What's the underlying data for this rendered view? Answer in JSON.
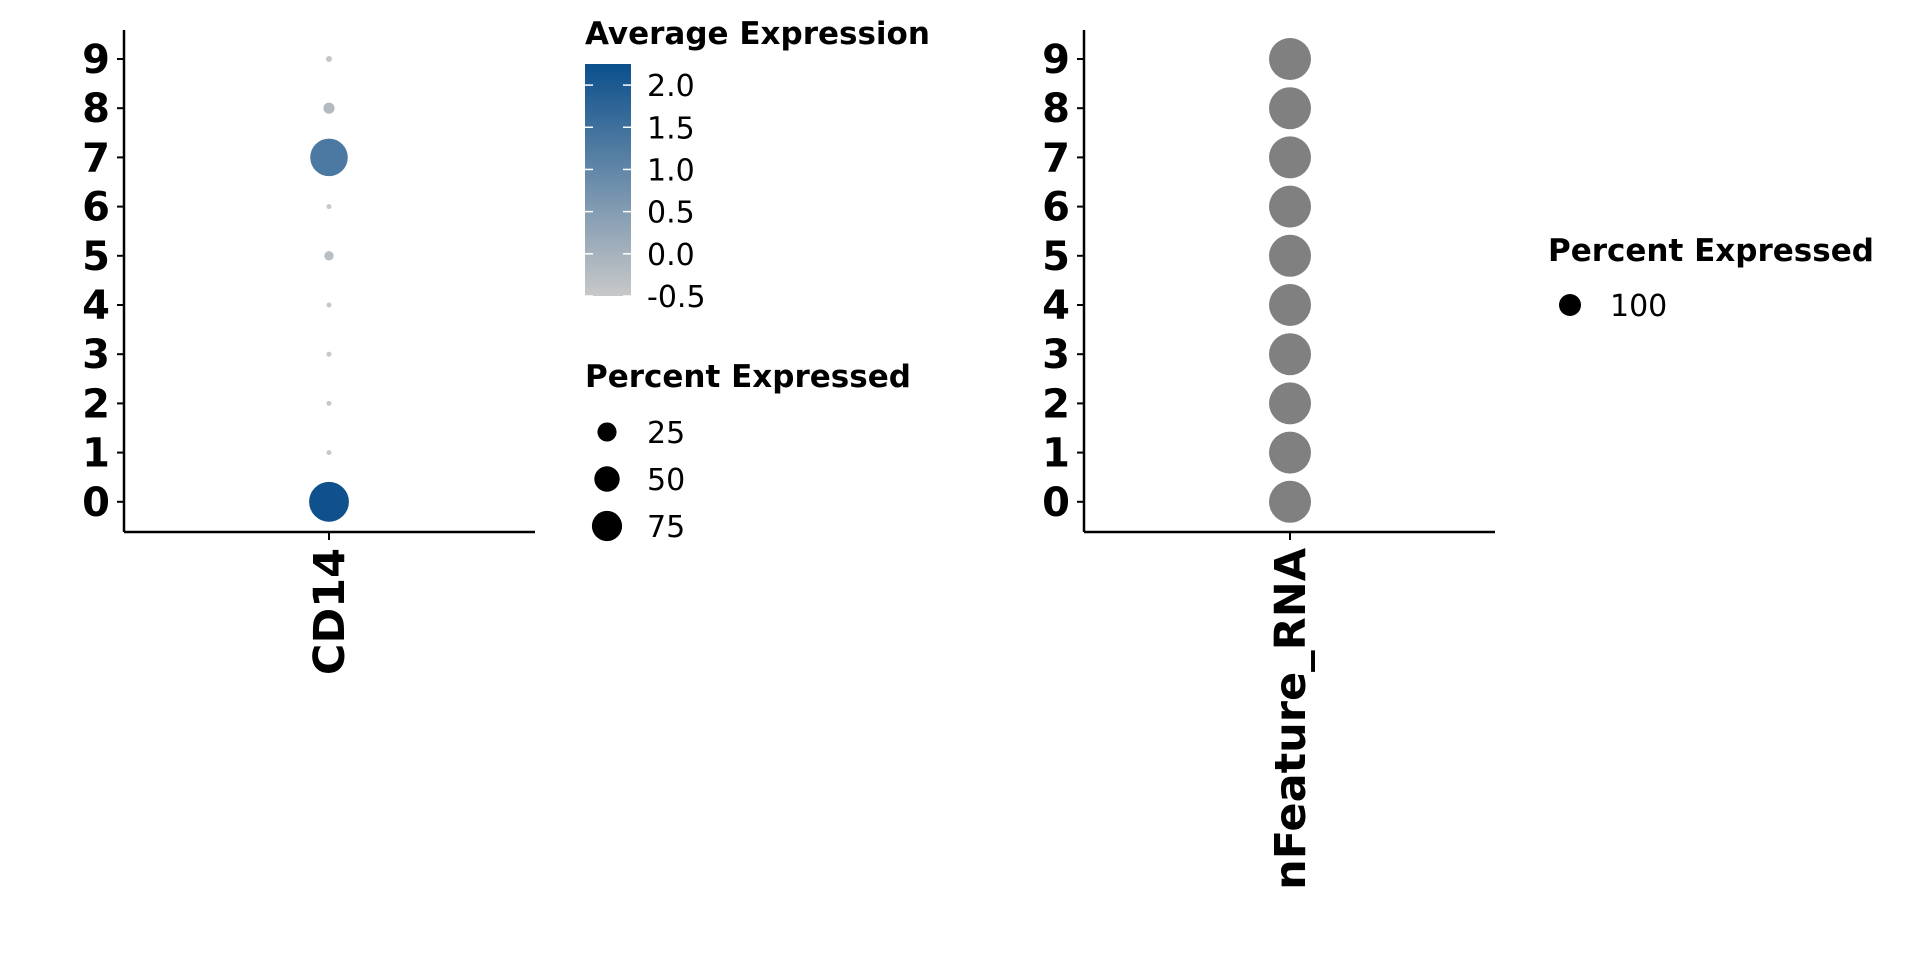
{
  "chart_data": [
    {
      "type": "scatter",
      "subtype": "dot-plot",
      "categories_x": [
        "CD14"
      ],
      "categories_y": [
        "0",
        "1",
        "2",
        "3",
        "4",
        "5",
        "6",
        "7",
        "8",
        "9"
      ],
      "points": [
        {
          "x": "CD14",
          "y": "0",
          "pct": 90,
          "avg": 2.2
        },
        {
          "x": "CD14",
          "y": "1",
          "pct": 1,
          "avg": -0.5
        },
        {
          "x": "CD14",
          "y": "2",
          "pct": 1,
          "avg": -0.5
        },
        {
          "x": "CD14",
          "y": "3",
          "pct": 1,
          "avg": -0.5
        },
        {
          "x": "CD14",
          "y": "4",
          "pct": 1,
          "avg": -0.5
        },
        {
          "x": "CD14",
          "y": "5",
          "pct": 5,
          "avg": -0.3
        },
        {
          "x": "CD14",
          "y": "6",
          "pct": 1,
          "avg": -0.5
        },
        {
          "x": "CD14",
          "y": "7",
          "pct": 80,
          "avg": 1.3
        },
        {
          "x": "CD14",
          "y": "8",
          "pct": 7,
          "avg": -0.2
        },
        {
          "x": "CD14",
          "y": "9",
          "pct": 2,
          "avg": -0.45
        }
      ],
      "color_scale": {
        "low": "#c8c8c8",
        "high": "#0b4f8c",
        "min": -0.5,
        "max": 2.25
      },
      "legends": [
        {
          "title": "Average Expression",
          "kind": "colorbar",
          "ticks": [
            {
              "value": 2.0,
              "label": "2.0"
            },
            {
              "value": 1.5,
              "label": "1.5"
            },
            {
              "value": 1.0,
              "label": "1.0"
            },
            {
              "value": 0.5,
              "label": "0.5"
            },
            {
              "value": 0.0,
              "label": "0.0"
            },
            {
              "value": -0.5,
              "label": "-0.5"
            }
          ]
        },
        {
          "title": "Percent Expressed",
          "kind": "size",
          "entries": [
            {
              "value": 25,
              "label": "25"
            },
            {
              "value": 50,
              "label": "50"
            },
            {
              "value": 75,
              "label": "75"
            }
          ]
        }
      ]
    },
    {
      "type": "scatter",
      "subtype": "dot-plot",
      "categories_x": [
        "nFeature_RNA"
      ],
      "categories_y": [
        "0",
        "1",
        "2",
        "3",
        "4",
        "5",
        "6",
        "7",
        "8",
        "9"
      ],
      "points": [
        {
          "x": "nFeature_RNA",
          "y": "0",
          "pct": 100
        },
        {
          "x": "nFeature_RNA",
          "y": "1",
          "pct": 100
        },
        {
          "x": "nFeature_RNA",
          "y": "2",
          "pct": 100
        },
        {
          "x": "nFeature_RNA",
          "y": "3",
          "pct": 100
        },
        {
          "x": "nFeature_RNA",
          "y": "4",
          "pct": 100
        },
        {
          "x": "nFeature_RNA",
          "y": "5",
          "pct": 100
        },
        {
          "x": "nFeature_RNA",
          "y": "6",
          "pct": 100
        },
        {
          "x": "nFeature_RNA",
          "y": "7",
          "pct": 100
        },
        {
          "x": "nFeature_RNA",
          "y": "8",
          "pct": 100
        },
        {
          "x": "nFeature_RNA",
          "y": "9",
          "pct": 100
        }
      ],
      "dot_color": "#808080",
      "legends": [
        {
          "title": "Percent Expressed",
          "kind": "size",
          "entries": [
            {
              "value": 100,
              "label": "100"
            }
          ]
        }
      ]
    }
  ]
}
